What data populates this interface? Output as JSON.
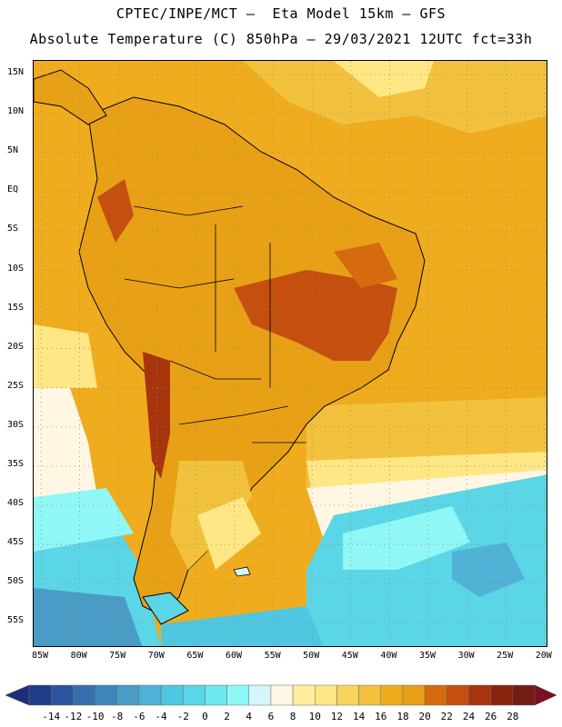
{
  "header": {
    "line1": "CPTEC/INPE/MCT –  Eta Model 15km – GFS",
    "line2": "Absolute Temperature (C) 850hPa – 29/03/2021 12UTC fct=33h"
  },
  "map": {
    "lat_ticks": [
      "15N",
      "10N",
      "5N",
      "EQ",
      "5S",
      "10S",
      "15S",
      "20S",
      "25S",
      "30S",
      "35S",
      "40S",
      "45S",
      "50S",
      "55S"
    ],
    "lon_ticks": [
      "85W",
      "80W",
      "75W",
      "70W",
      "65W",
      "60W",
      "55W",
      "50W",
      "45W",
      "40W",
      "35W",
      "30W",
      "25W",
      "20W"
    ],
    "grid_style": "dotted"
  },
  "colorbar": {
    "labels": [
      "-14",
      "-12",
      "-10",
      "-8",
      "-6",
      "-4",
      "-2",
      "0",
      "2",
      "4",
      "6",
      "8",
      "10",
      "12",
      "14",
      "16",
      "18",
      "20",
      "22",
      "24",
      "26",
      "28"
    ],
    "colors": [
      "#1e3c8a",
      "#2a559e",
      "#3570ad",
      "#3d86bb",
      "#4a9cc7",
      "#4fb2d6",
      "#4fc7e0",
      "#5ad6e6",
      "#6ee8ee",
      "#8ff7f5",
      "#d4f6fb",
      "#fff7e3",
      "#ffef9e",
      "#ffe785",
      "#f7d45c",
      "#f2c23e",
      "#efac1f",
      "#e8a016",
      "#d66a0f",
      "#c44f0f",
      "#a8340e",
      "#8a230e",
      "#721c16"
    ],
    "end_left": "#1e2f7a",
    "end_right": "#7a1020"
  }
}
